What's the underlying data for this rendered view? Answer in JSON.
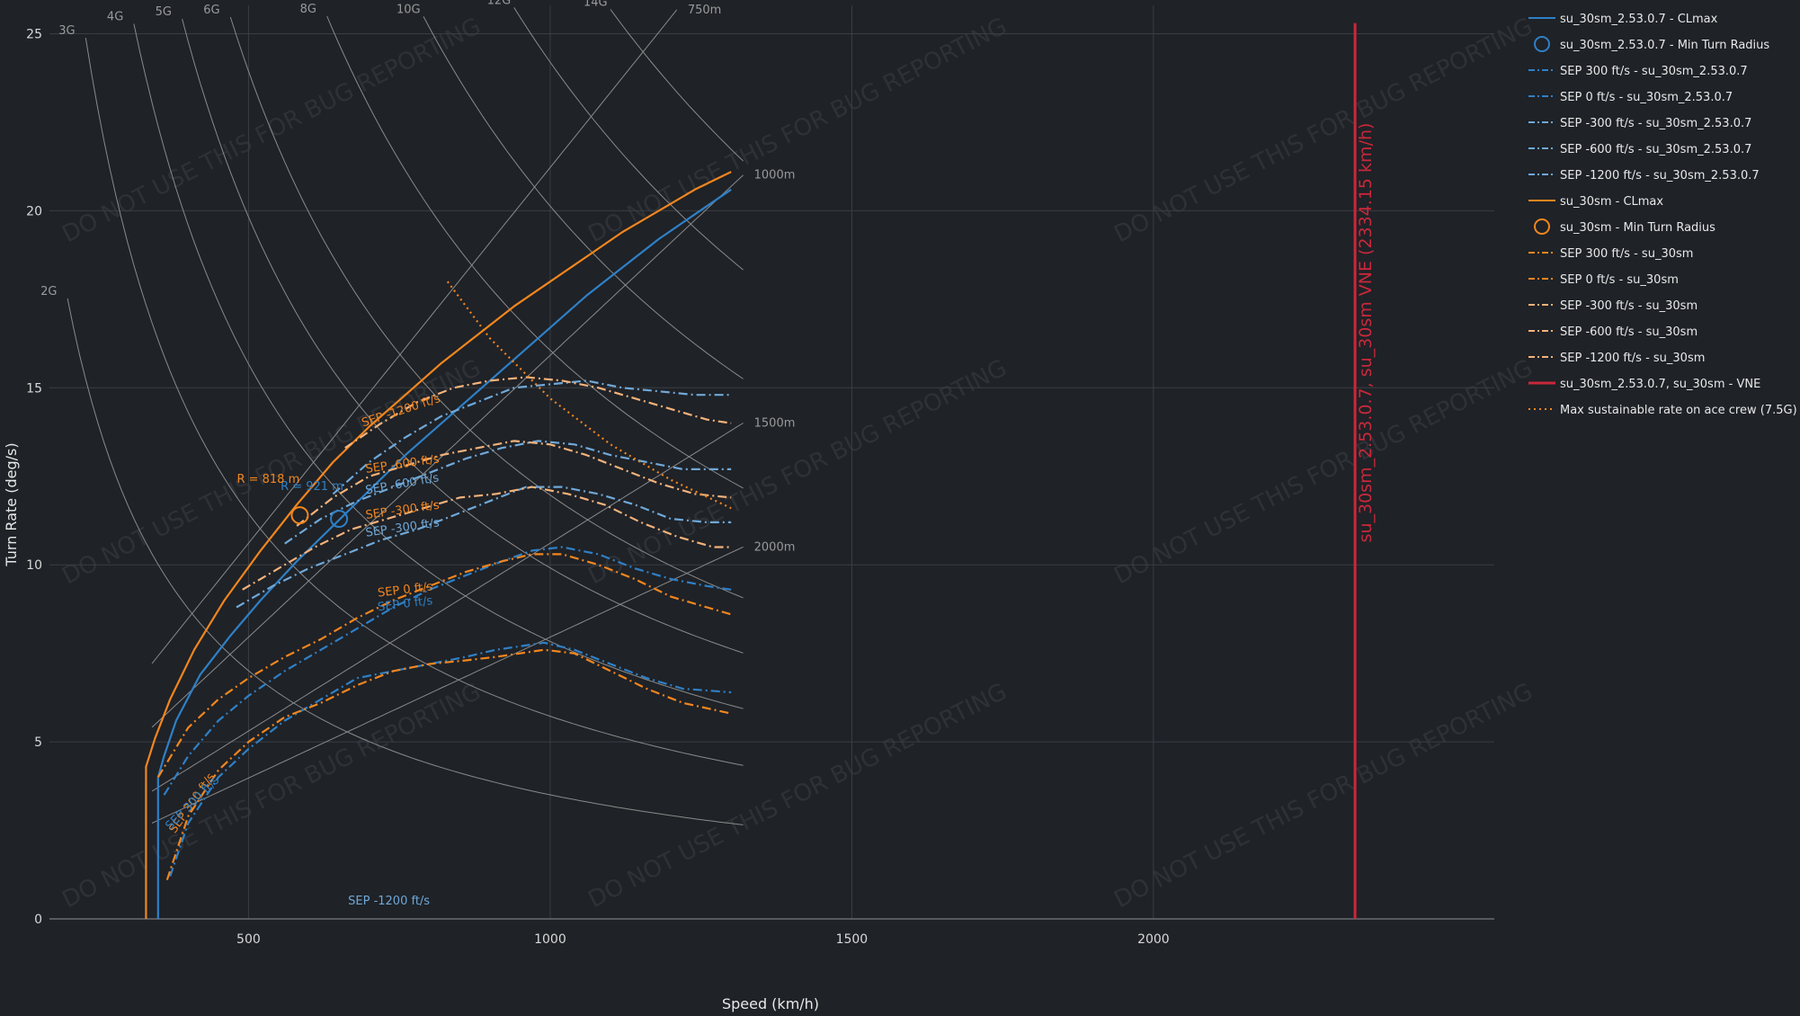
{
  "chart_data": {
    "type": "line",
    "xlabel": "Speed (km/h)",
    "ylabel": "Turn Rate (deg/s)",
    "xlim": [
      170,
      2565
    ],
    "ylim": [
      0,
      25.8
    ],
    "xticks": [
      500,
      1000,
      1500,
      2000
    ],
    "yticks": [
      0,
      5,
      10,
      15,
      20,
      25
    ],
    "colors": {
      "blue": "#2f80c6",
      "blue_light": "#6fa8d8",
      "orange": "#f2861e",
      "orange_light": "#f4b27a",
      "vne": "#c9283b",
      "grid": "#3a3e44",
      "gline": "#8a8a8a"
    },
    "watermark": "DO NOT USE THIS FOR BUG REPORTING",
    "series": [
      {
        "name": "su_30sm_2.53.0.7 - CLmax",
        "style": "solid",
        "color": "#2f80c6",
        "x": [
          350,
          350,
          360,
          380,
          420,
          470,
          520,
          580,
          640,
          700,
          760,
          820,
          880,
          940,
          1000,
          1060,
          1120,
          1180,
          1240,
          1300
        ],
        "y": [
          0,
          4.0,
          4.6,
          5.6,
          6.9,
          8.0,
          9.0,
          10.1,
          11.1,
          12.1,
          13.1,
          14.0,
          14.9,
          15.8,
          16.7,
          17.6,
          18.4,
          19.2,
          19.9,
          20.6
        ]
      },
      {
        "name": "su_30sm - CLmax",
        "style": "solid",
        "color": "#f2861e",
        "x": [
          330,
          330,
          345,
          370,
          410,
          460,
          520,
          580,
          640,
          700,
          760,
          820,
          880,
          940,
          1000,
          1060,
          1120,
          1180,
          1240,
          1300
        ],
        "y": [
          0,
          4.3,
          5.1,
          6.2,
          7.6,
          9.0,
          10.4,
          11.7,
          12.9,
          13.9,
          14.8,
          15.7,
          16.5,
          17.3,
          18.0,
          18.7,
          19.4,
          20.0,
          20.6,
          21.1
        ]
      },
      {
        "name": "SEP 300 ft/s - su_30sm_2.53.0.7",
        "style": "dashdot",
        "color": "#2f80c6",
        "x": [
          370,
          400,
          450,
          500,
          560,
          620,
          680,
          740,
          800,
          860,
          910,
          950,
          990,
          1040,
          1100,
          1160,
          1220,
          1300
        ],
        "y": [
          1.2,
          2.7,
          4.0,
          4.8,
          5.6,
          6.2,
          6.8,
          7.0,
          7.2,
          7.4,
          7.6,
          7.7,
          7.8,
          7.6,
          7.2,
          6.8,
          6.5,
          6.4
        ]
      },
      {
        "name": "SEP 0 ft/s - su_30sm_2.53.0.7",
        "style": "dashdot",
        "color": "#2f80c6",
        "x": [
          360,
          400,
          450,
          500,
          560,
          620,
          680,
          740,
          800,
          860,
          920,
          970,
          1020,
          1080,
          1140,
          1200,
          1260,
          1300
        ],
        "y": [
          3.5,
          4.6,
          5.6,
          6.3,
          7.0,
          7.6,
          8.2,
          8.8,
          9.3,
          9.7,
          10.1,
          10.4,
          10.5,
          10.3,
          9.9,
          9.6,
          9.4,
          9.3
        ]
      },
      {
        "name": "SEP -300 ft/s - su_30sm_2.53.0.7",
        "style": "dashdot",
        "color": "#6fa8d8",
        "x": [
          480,
          540,
          600,
          660,
          720,
          780,
          840,
          900,
          960,
          1020,
          1080,
          1140,
          1200,
          1260,
          1300
        ],
        "y": [
          8.8,
          9.4,
          9.9,
          10.3,
          10.7,
          11.0,
          11.4,
          11.8,
          12.2,
          12.2,
          12.0,
          11.7,
          11.3,
          11.2,
          11.2
        ]
      },
      {
        "name": "SEP -600 ft/s - su_30sm_2.53.0.7",
        "style": "dashdot",
        "color": "#6fa8d8",
        "x": [
          560,
          620,
          680,
          740,
          800,
          860,
          920,
          980,
          1040,
          1100,
          1160,
          1220,
          1300
        ],
        "y": [
          10.6,
          11.3,
          11.8,
          12.2,
          12.6,
          13.0,
          13.3,
          13.5,
          13.4,
          13.1,
          12.9,
          12.7,
          12.7
        ]
      },
      {
        "name": "SEP -1200 ft/s - su_30sm_2.53.0.7",
        "style": "dashdot",
        "color": "#6fa8d8",
        "x": [
          640,
          700,
          760,
          820,
          880,
          940,
          1000,
          1060,
          1120,
          1180,
          1240,
          1300
        ],
        "y": [
          12.0,
          12.9,
          13.6,
          14.2,
          14.6,
          15.0,
          15.1,
          15.2,
          15.0,
          14.9,
          14.8,
          14.8
        ]
      },
      {
        "name": "SEP 300 ft/s - su_30sm",
        "style": "dashdot",
        "color": "#f2861e",
        "x": [
          365,
          400,
          450,
          500,
          560,
          620,
          680,
          740,
          800,
          860,
          910,
          950,
          990,
          1040,
          1100,
          1160,
          1220,
          1300
        ],
        "y": [
          1.1,
          2.9,
          4.2,
          5.0,
          5.7,
          6.1,
          6.6,
          7.0,
          7.2,
          7.3,
          7.4,
          7.5,
          7.6,
          7.5,
          7.0,
          6.5,
          6.1,
          5.8
        ]
      },
      {
        "name": "SEP 0 ft/s - su_30sm",
        "style": "dashdot",
        "color": "#f2861e",
        "x": [
          350,
          400,
          450,
          500,
          560,
          620,
          680,
          740,
          800,
          860,
          920,
          970,
          1020,
          1080,
          1140,
          1200,
          1260,
          1300
        ],
        "y": [
          4.0,
          5.4,
          6.2,
          6.8,
          7.4,
          7.9,
          8.5,
          9.0,
          9.4,
          9.8,
          10.1,
          10.3,
          10.3,
          10.0,
          9.6,
          9.1,
          8.8,
          8.6
        ]
      },
      {
        "name": "SEP -300 ft/s - su_30sm",
        "style": "dashdot",
        "color": "#f4b27a",
        "x": [
          490,
          550,
          610,
          670,
          730,
          790,
          850,
          910,
          970,
          1030,
          1090,
          1150,
          1210,
          1270,
          1300
        ],
        "y": [
          9.3,
          9.9,
          10.5,
          11.0,
          11.3,
          11.6,
          11.9,
          12.0,
          12.2,
          12.0,
          11.7,
          11.2,
          10.8,
          10.5,
          10.5
        ]
      },
      {
        "name": "SEP -600 ft/s - su_30sm",
        "style": "dashdot",
        "color": "#f4b27a",
        "x": [
          580,
          640,
          700,
          760,
          820,
          880,
          940,
          1000,
          1060,
          1120,
          1180,
          1240,
          1300
        ],
        "y": [
          11.1,
          11.9,
          12.5,
          12.8,
          13.1,
          13.3,
          13.5,
          13.4,
          13.1,
          12.7,
          12.3,
          12.0,
          11.9
        ]
      },
      {
        "name": "SEP -1200 ft/s - su_30sm",
        "style": "dashdot",
        "color": "#f4b27a",
        "x": [
          660,
          720,
          780,
          840,
          900,
          960,
          1020,
          1080,
          1140,
          1200,
          1260,
          1300
        ],
        "y": [
          13.3,
          14.0,
          14.6,
          15.0,
          15.2,
          15.3,
          15.2,
          15.0,
          14.7,
          14.4,
          14.1,
          14.0
        ]
      },
      {
        "name": "Max sustainable rate on ace crew (7.5G)",
        "style": "dotted",
        "color": "#f2861e",
        "x": [
          830,
          900,
          1000,
          1100,
          1200,
          1300
        ],
        "y": [
          18.0,
          16.4,
          14.7,
          13.4,
          12.4,
          11.6
        ]
      }
    ],
    "min_turn_radius": [
      {
        "name": "su_30sm_2.53.0.7 - Min Turn Radius",
        "color": "#2f80c6",
        "x": 650,
        "y": 11.3,
        "label": "R = 921 m"
      },
      {
        "name": "su_30sm - Min Turn Radius",
        "color": "#f2861e",
        "x": 585,
        "y": 11.4,
        "label": "R = 818 m"
      }
    ],
    "vne": {
      "name": "su_30sm_2.53.0.7, su_30sm - VNE",
      "x": 2334.15,
      "label": "su_30sm_2.53.0.7, su_30sm VNE (2334.15 km/h)"
    },
    "g_lines": [
      {
        "g": 2,
        "label": "2G"
      },
      {
        "g": 3,
        "label": "3G"
      },
      {
        "g": 4,
        "label": "4G"
      },
      {
        "g": 5,
        "label": "5G"
      },
      {
        "g": 6,
        "label": "6G"
      },
      {
        "g": 8,
        "label": "8G"
      },
      {
        "g": 10,
        "label": "10G"
      },
      {
        "g": 12,
        "label": "12G"
      },
      {
        "g": 14,
        "label": "14G"
      }
    ],
    "radius_lines": [
      {
        "r": 750,
        "label": "750m"
      },
      {
        "r": 1000,
        "label": "1000m"
      },
      {
        "r": 1500,
        "label": "1500m"
      },
      {
        "r": 2000,
        "label": "2000m"
      }
    ],
    "sep_labels": [
      {
        "text": "SEP -1200 ft/s",
        "x": 690,
        "y": 13.9,
        "color": "#f2861e",
        "rot": -18
      },
      {
        "text": "SEP -600 ft/s",
        "x": 695,
        "y": 12.6,
        "color": "#f2861e",
        "rot": -8
      },
      {
        "text": "SEP -600 ft/s",
        "x": 695,
        "y": 12.0,
        "color": "#6fa8d8",
        "rot": -10
      },
      {
        "text": "SEP -300 ft/s",
        "x": 695,
        "y": 11.3,
        "color": "#f2861e",
        "rot": -8
      },
      {
        "text": "SEP -300 ft/s",
        "x": 695,
        "y": 10.8,
        "color": "#6fa8d8",
        "rot": -8
      },
      {
        "text": "SEP 0 ft/s",
        "x": 715,
        "y": 9.1,
        "color": "#f2861e",
        "rot": -7
      },
      {
        "text": "SEP 0 ft/s",
        "x": 715,
        "y": 8.7,
        "color": "#2f80c6",
        "rot": -7
      },
      {
        "text": "SEP 300 ft/s",
        "x": 378,
        "y": 2.4,
        "color": "#f2861e",
        "rot": -55
      },
      {
        "text": "SEP 300 ft/s",
        "x": 370,
        "y": 2.5,
        "color": "#2f80c6",
        "rot": -45
      },
      {
        "text": "SEP -1200 ft/s",
        "x": 665,
        "y": 0.4,
        "color": "#6fa8d8",
        "rot": 0
      }
    ]
  }
}
